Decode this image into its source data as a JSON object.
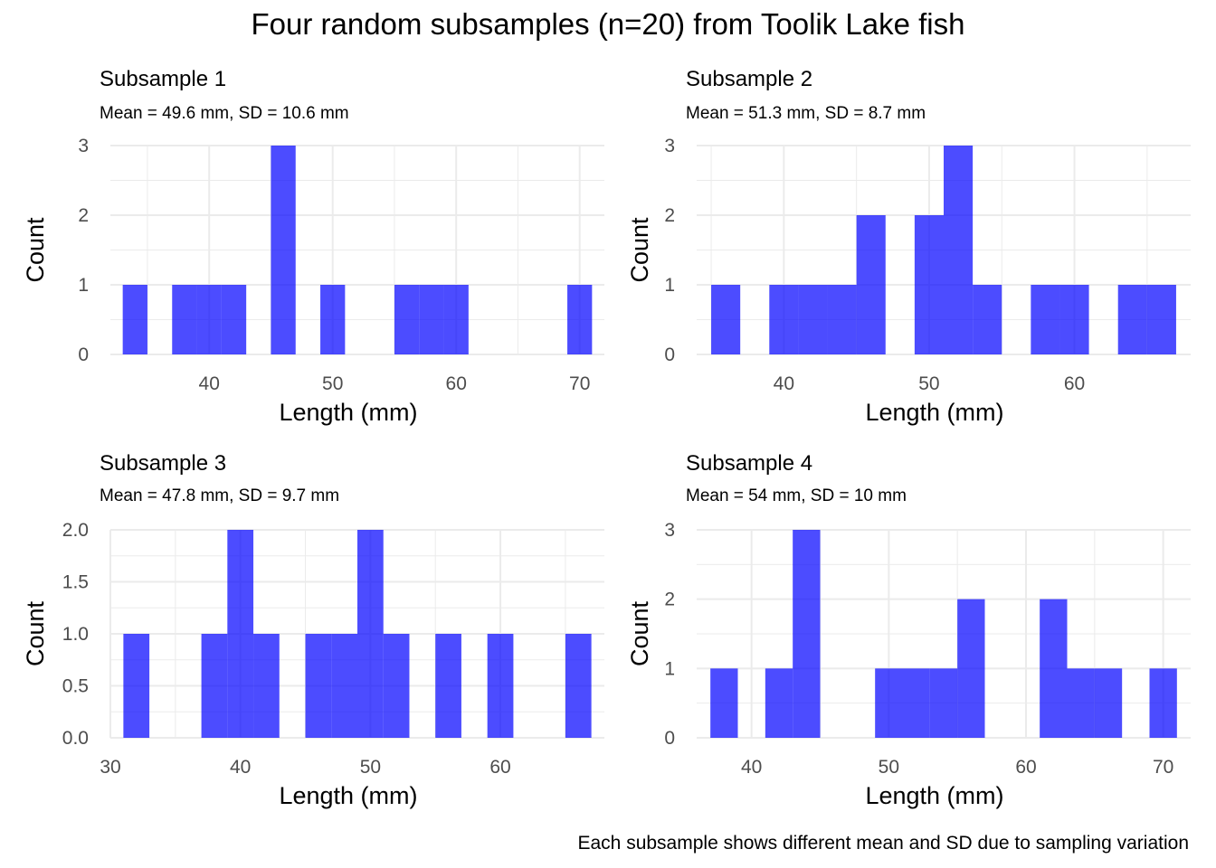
{
  "title": "Four random subsamples (n=20) from Toolik Lake fish",
  "caption": "Each subsample shows different mean and SD due to sampling variation",
  "colors": {
    "bar": "#0000ff",
    "grid": "#ebebeb",
    "tick_text": "#4d4d4d"
  },
  "chart_data": [
    {
      "type": "bar",
      "title": "Subsample 1",
      "subtitle": "Mean = 49.6 mm, SD = 10.6 mm",
      "xlabel": "Length (mm)",
      "ylabel": "Count",
      "xlim": [
        32,
        72
      ],
      "ylim": [
        0,
        3
      ],
      "x_breaks": [
        40,
        50,
        60,
        70
      ],
      "y_breaks": [
        0,
        1,
        2,
        3
      ],
      "bins": [
        {
          "x0": 33,
          "x1": 35,
          "count": 1
        },
        {
          "x0": 37,
          "x1": 39,
          "count": 1
        },
        {
          "x0": 39,
          "x1": 41,
          "count": 1
        },
        {
          "x0": 41,
          "x1": 43,
          "count": 1
        },
        {
          "x0": 45,
          "x1": 47,
          "count": 3
        },
        {
          "x0": 49,
          "x1": 51,
          "count": 1
        },
        {
          "x0": 55,
          "x1": 57,
          "count": 1
        },
        {
          "x0": 57,
          "x1": 59,
          "count": 1
        },
        {
          "x0": 59,
          "x1": 61,
          "count": 1
        },
        {
          "x0": 69,
          "x1": 71,
          "count": 1
        }
      ]
    },
    {
      "type": "bar",
      "title": "Subsample 2",
      "subtitle": "Mean = 51.3 mm, SD = 8.7 mm",
      "xlabel": "Length (mm)",
      "ylabel": "Count",
      "xlim": [
        34,
        68
      ],
      "ylim": [
        0,
        3
      ],
      "x_breaks": [
        40,
        50,
        60
      ],
      "y_breaks": [
        0,
        1,
        2,
        3
      ],
      "bins": [
        {
          "x0": 35,
          "x1": 37,
          "count": 1
        },
        {
          "x0": 39,
          "x1": 41,
          "count": 1
        },
        {
          "x0": 41,
          "x1": 43,
          "count": 1
        },
        {
          "x0": 43,
          "x1": 45,
          "count": 1
        },
        {
          "x0": 45,
          "x1": 47,
          "count": 2
        },
        {
          "x0": 49,
          "x1": 51,
          "count": 2
        },
        {
          "x0": 51,
          "x1": 53,
          "count": 3
        },
        {
          "x0": 53,
          "x1": 55,
          "count": 1
        },
        {
          "x0": 57,
          "x1": 59,
          "count": 1
        },
        {
          "x0": 59,
          "x1": 61,
          "count": 1
        },
        {
          "x0": 63,
          "x1": 65,
          "count": 1
        },
        {
          "x0": 65,
          "x1": 67,
          "count": 1
        }
      ]
    },
    {
      "type": "bar",
      "title": "Subsample 3",
      "subtitle": "Mean = 47.8 mm, SD = 9.7 mm",
      "xlabel": "Length (mm)",
      "ylabel": "Count",
      "xlim": [
        30,
        68
      ],
      "ylim": [
        0,
        2
      ],
      "x_breaks": [
        30,
        40,
        50,
        60
      ],
      "y_breaks": [
        0,
        0.5,
        1,
        1.5,
        2
      ],
      "y_labels": [
        "0.0",
        "0.5",
        "1.0",
        "1.5",
        "2.0"
      ],
      "bins": [
        {
          "x0": 31,
          "x1": 33,
          "count": 1
        },
        {
          "x0": 37,
          "x1": 39,
          "count": 1
        },
        {
          "x0": 39,
          "x1": 41,
          "count": 2
        },
        {
          "x0": 41,
          "x1": 43,
          "count": 1
        },
        {
          "x0": 45,
          "x1": 47,
          "count": 1
        },
        {
          "x0": 47,
          "x1": 49,
          "count": 1
        },
        {
          "x0": 49,
          "x1": 51,
          "count": 2
        },
        {
          "x0": 51,
          "x1": 53,
          "count": 1
        },
        {
          "x0": 55,
          "x1": 57,
          "count": 1
        },
        {
          "x0": 59,
          "x1": 61,
          "count": 1
        },
        {
          "x0": 65,
          "x1": 67,
          "count": 1
        }
      ]
    },
    {
      "type": "bar",
      "title": "Subsample 4",
      "subtitle": "Mean = 54 mm, SD = 10 mm",
      "xlabel": "Length (mm)",
      "ylabel": "Count",
      "xlim": [
        36,
        72
      ],
      "ylim": [
        0,
        3
      ],
      "x_breaks": [
        40,
        50,
        60,
        70
      ],
      "y_breaks": [
        0,
        1,
        2,
        3
      ],
      "bins": [
        {
          "x0": 37,
          "x1": 39,
          "count": 1
        },
        {
          "x0": 41,
          "x1": 43,
          "count": 1
        },
        {
          "x0": 43,
          "x1": 45,
          "count": 3
        },
        {
          "x0": 49,
          "x1": 51,
          "count": 1
        },
        {
          "x0": 51,
          "x1": 53,
          "count": 1
        },
        {
          "x0": 53,
          "x1": 55,
          "count": 1
        },
        {
          "x0": 55,
          "x1": 57,
          "count": 2
        },
        {
          "x0": 61,
          "x1": 63,
          "count": 2
        },
        {
          "x0": 63,
          "x1": 65,
          "count": 1
        },
        {
          "x0": 65,
          "x1": 67,
          "count": 1
        },
        {
          "x0": 69,
          "x1": 71,
          "count": 1
        }
      ]
    }
  ]
}
